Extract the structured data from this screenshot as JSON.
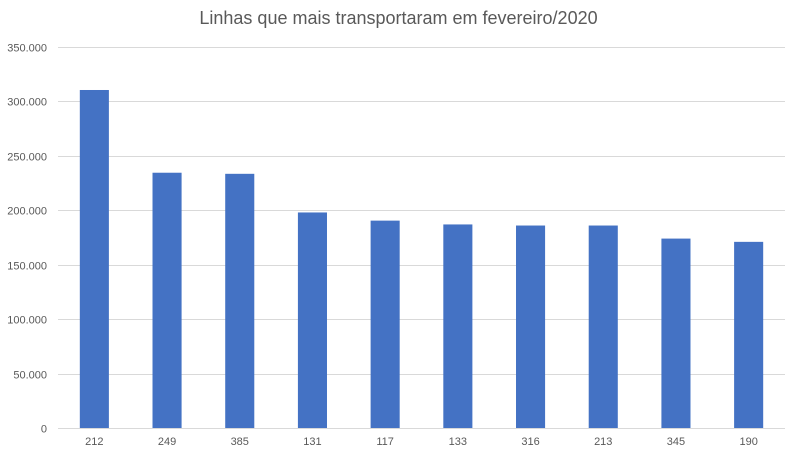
{
  "chart_data": {
    "type": "bar",
    "title": "Linhas que mais transportaram em fevereiro/2020",
    "xlabel": "",
    "ylabel": "",
    "categories": [
      "212",
      "249",
      "385",
      "131",
      "117",
      "133",
      "316",
      "213",
      "345",
      "190"
    ],
    "values": [
      310500,
      234500,
      233500,
      198000,
      190500,
      187000,
      186000,
      186000,
      174000,
      171000
    ],
    "ylim": [
      0,
      350000
    ],
    "yticks": [
      0,
      50000,
      100000,
      150000,
      200000,
      250000,
      300000,
      350000
    ],
    "ytick_labels": [
      "0",
      "50.000",
      "100.000",
      "150.000",
      "200.000",
      "250.000",
      "300.000",
      "350.000"
    ],
    "grid": true,
    "legend": "none",
    "bar_color": "#4472c4"
  }
}
